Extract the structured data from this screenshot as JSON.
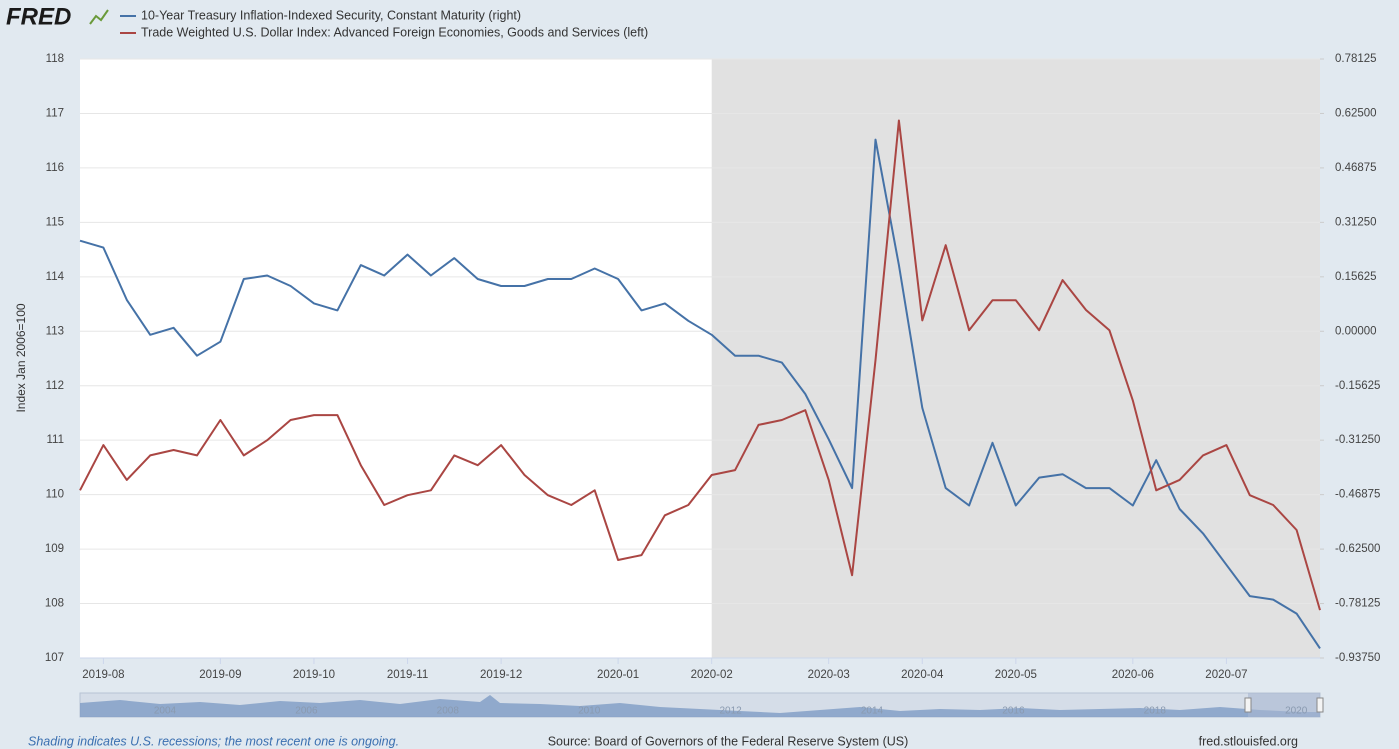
{
  "header": {
    "logo": "FRED"
  },
  "footer": {
    "note": "Shading indicates U.S. recessions; the most recent one is ongoing.",
    "source": "Source: Board of Governors of the Federal Reserve System (US)",
    "url": "fred.stlouisfed.org"
  },
  "navigator_labels": [
    "2004",
    "2006",
    "2008",
    "2010",
    "2012",
    "2014",
    "2016",
    "2018",
    "2020"
  ],
  "chart_data": {
    "type": "line",
    "y_label": "Index Jan 2006=100",
    "recession_start": "2020-02",
    "categories": [
      null,
      "2019-08",
      null,
      null,
      null,
      null,
      "2019-09",
      null,
      null,
      null,
      "2019-10",
      null,
      null,
      null,
      "2019-11",
      null,
      null,
      null,
      "2019-12",
      null,
      null,
      null,
      null,
      "2020-01",
      null,
      null,
      null,
      "2020-02",
      null,
      null,
      null,
      null,
      "2020-03",
      null,
      null,
      null,
      "2020-04",
      null,
      null,
      null,
      "2020-05",
      null,
      null,
      null,
      null,
      "2020-06",
      null,
      null,
      null,
      "2020-07",
      null,
      null,
      null,
      null
    ],
    "ylim": [
      107,
      118
    ],
    "yticks": [
      107,
      108,
      109,
      110,
      111,
      112,
      113,
      114,
      115,
      116,
      117,
      118
    ],
    "y2lim": [
      -0.9375,
      0.78125
    ],
    "y2ticks": [
      {
        "value": -0.9375,
        "label": "-0.93750"
      },
      {
        "value": -0.78125,
        "label": "-0.78125"
      },
      {
        "value": -0.625,
        "label": "-0.62500"
      },
      {
        "value": -0.46875,
        "label": "-0.46875"
      },
      {
        "value": -0.3125,
        "label": "-0.31250"
      },
      {
        "value": -0.15625,
        "label": "-0.15625"
      },
      {
        "value": 0,
        "label": "0.00000"
      },
      {
        "value": 0.15625,
        "label": "0.15625"
      },
      {
        "value": 0.3125,
        "label": "0.31250"
      },
      {
        "value": 0.46875,
        "label": "0.46875"
      },
      {
        "value": 0.625,
        "label": "0.62500"
      },
      {
        "value": 0.78125,
        "label": "0.78125"
      }
    ],
    "grid": true,
    "series": [
      {
        "name": "10-Year Treasury Inflation-Indexed Security, Constant Maturity (right)",
        "color": "#4572a7",
        "axis": "y2",
        "values": [
          0.26,
          0.24,
          0.09,
          -0.01,
          0.01,
          -0.07,
          -0.03,
          0.15,
          0.16,
          0.13,
          0.08,
          0.06,
          0.19,
          0.16,
          0.22,
          0.16,
          0.21,
          0.15,
          0.13,
          0.13,
          0.15,
          0.15,
          0.18,
          0.15,
          0.06,
          0.08,
          0.03,
          -0.01,
          -0.07,
          -0.07,
          -0.09,
          -0.18,
          -0.31,
          -0.45,
          0.55,
          0.19,
          -0.22,
          -0.45,
          -0.5,
          -0.32,
          -0.5,
          -0.42,
          -0.41,
          -0.45,
          -0.45,
          -0.5,
          -0.37,
          -0.51,
          -0.58,
          -0.67,
          -0.76,
          -0.77,
          -0.81,
          -0.91
        ]
      },
      {
        "name": "Trade Weighted U.S. Dollar Index: Advanced Foreign Economies, Goods and Services (left)",
        "color": "#aa4643",
        "values": [
          110.08,
          110.91,
          110.27,
          110.72,
          110.82,
          110.72,
          111.37,
          110.72,
          111.0,
          111.37,
          111.46,
          111.46,
          110.54,
          109.81,
          109.99,
          110.08,
          110.72,
          110.54,
          110.91,
          110.36,
          109.99,
          109.81,
          110.08,
          108.8,
          108.89,
          109.62,
          109.81,
          110.36,
          110.45,
          111.28,
          111.37,
          111.55,
          110.27,
          108.52,
          112.47,
          116.87,
          113.2,
          114.58,
          113.02,
          113.57,
          113.57,
          113.02,
          113.94,
          113.39,
          113.02,
          111.73,
          110.08,
          110.27,
          110.72,
          110.91,
          109.99,
          109.81,
          109.35,
          107.88
        ]
      }
    ]
  }
}
